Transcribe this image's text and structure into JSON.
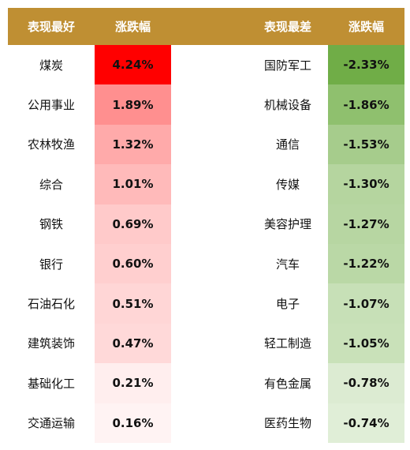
{
  "header": {
    "best_label": "表现最好",
    "change_label_1": "涨跌幅",
    "worst_label": "表现最差",
    "change_label_2": "涨跌幅"
  },
  "rows": [
    {
      "best_name": "煤炭",
      "best_change": "4.24%",
      "best_color": "#ff0000",
      "worst_name": "国防军工",
      "worst_change": "-2.33%",
      "worst_color": "#70ad47"
    },
    {
      "best_name": "公用事业",
      "best_change": "1.89%",
      "best_color": "#ff8f8f",
      "worst_name": "机械设备",
      "worst_change": "-1.86%",
      "worst_color": "#8fc06e"
    },
    {
      "best_name": "农林牧渔",
      "best_change": "1.32%",
      "best_color": "#ffaaaa",
      "worst_name": "通信",
      "worst_change": "-1.53%",
      "worst_color": "#a6cc8c"
    },
    {
      "best_name": "综合",
      "best_change": "1.01%",
      "best_color": "#ffbaba",
      "worst_name": "传媒",
      "worst_change": "-1.30%",
      "worst_color": "#b5d59f"
    },
    {
      "best_name": "钢铁",
      "best_change": "0.69%",
      "best_color": "#ffcaca",
      "worst_name": "美容护理",
      "worst_change": "-1.27%",
      "worst_color": "#b7d6a2"
    },
    {
      "best_name": "银行",
      "best_change": "0.60%",
      "best_color": "#ffcfcf",
      "worst_name": "汽车",
      "worst_change": "-1.22%",
      "worst_color": "#bad8a6"
    },
    {
      "best_name": "石油石化",
      "best_change": "0.51%",
      "best_color": "#ffd6d6",
      "worst_name": "电子",
      "worst_change": "-1.07%",
      "worst_color": "#c7e0b7"
    },
    {
      "best_name": "建筑装饰",
      "best_change": "0.47%",
      "best_color": "#ffd9d9",
      "worst_name": "轻工制造",
      "worst_change": "-1.05%",
      "worst_color": "#c9e1b9"
    },
    {
      "best_name": "基础化工",
      "best_change": "0.21%",
      "best_color": "#ffeeee",
      "worst_name": "有色金属",
      "worst_change": "-0.78%",
      "worst_color": "#dcebd2"
    },
    {
      "best_name": "交通运输",
      "best_change": "0.16%",
      "best_color": "#fff3f3",
      "worst_name": "医药生物",
      "worst_change": "-0.74%",
      "worst_color": "#e0eed7"
    }
  ]
}
